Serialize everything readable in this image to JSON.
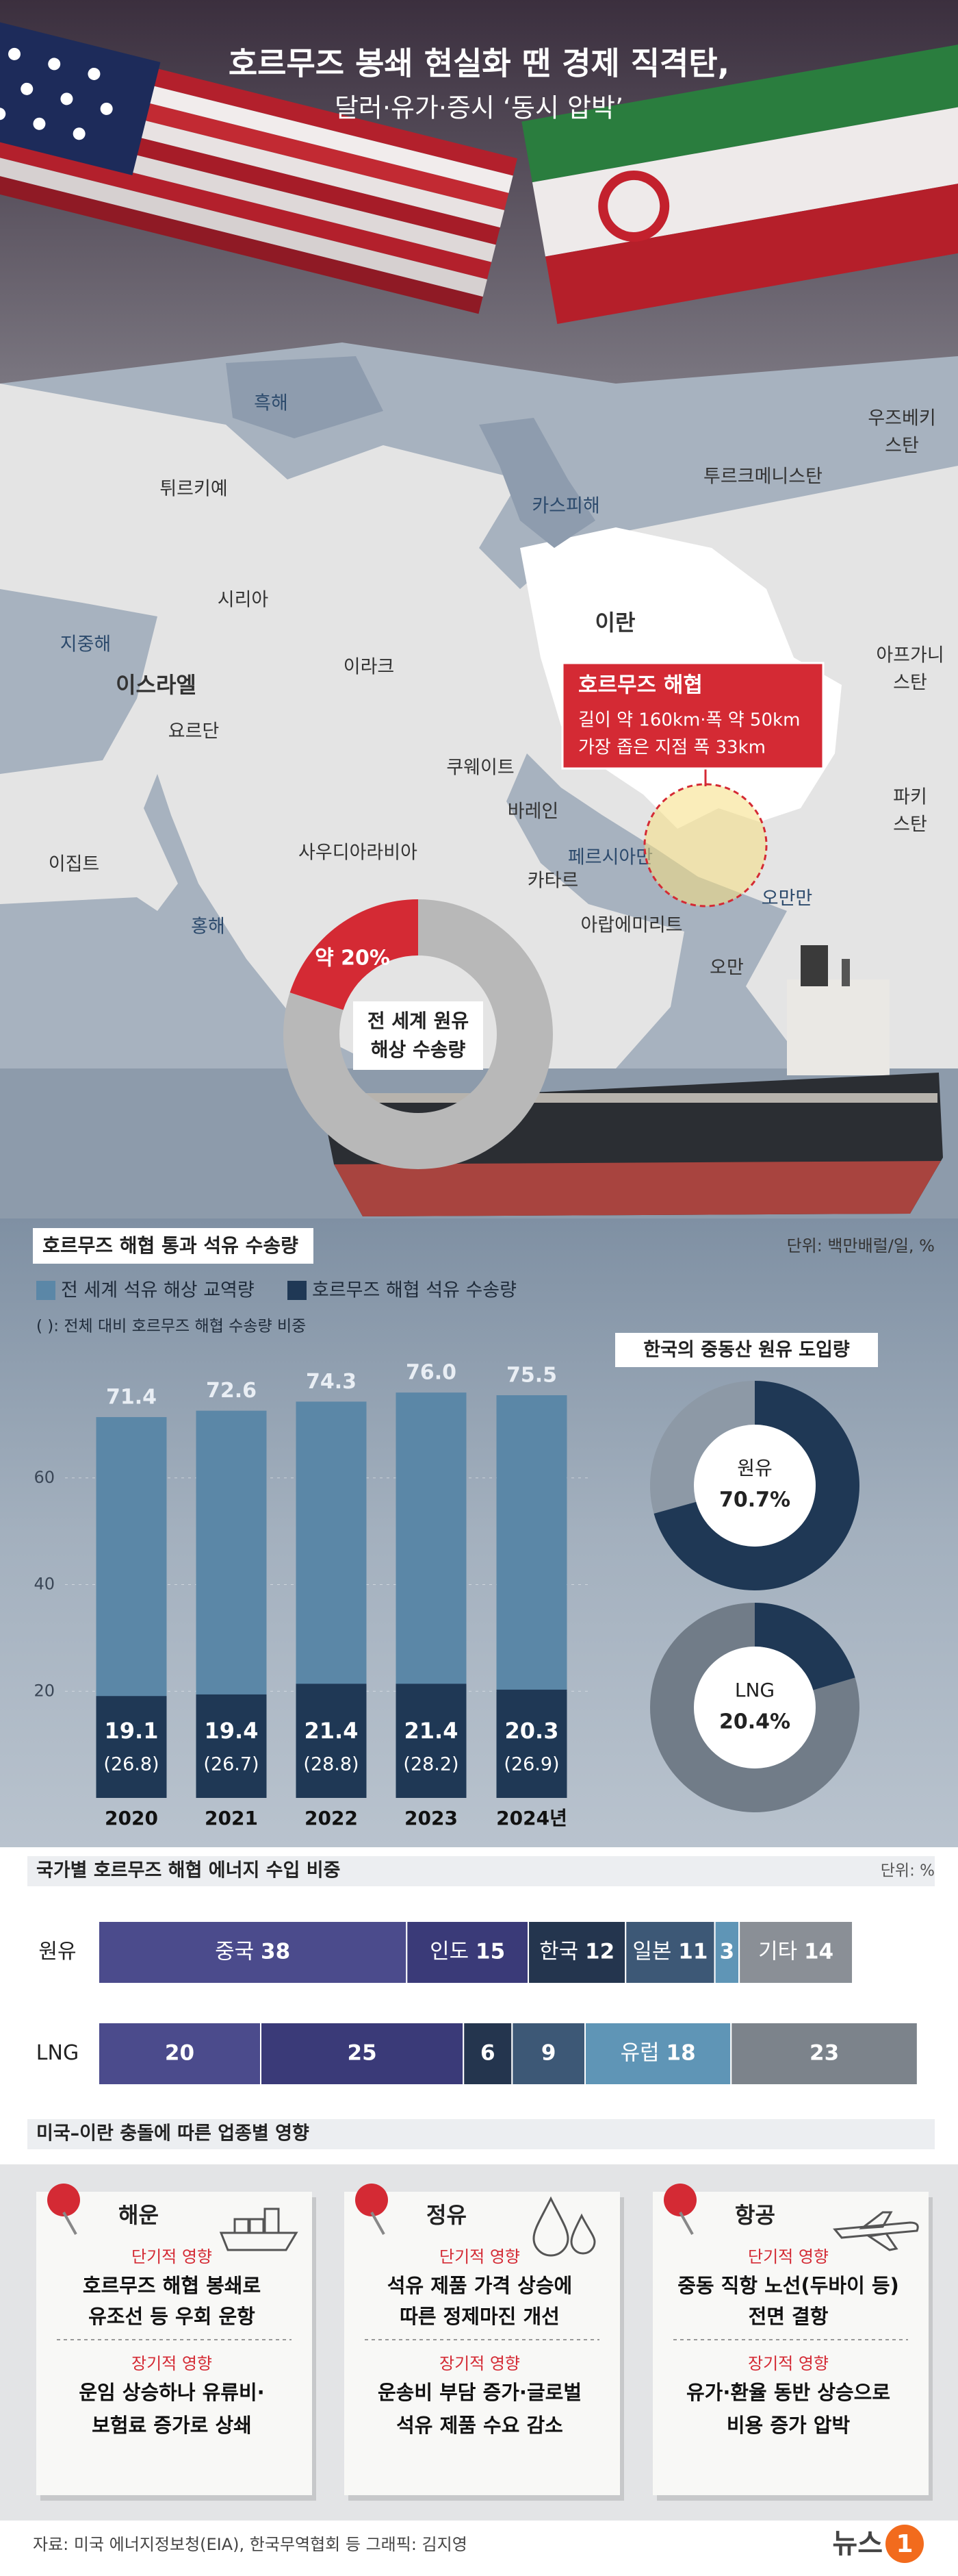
{
  "header": {
    "title": "호르무즈 봉쇄 현실화 땐 경제 직격탄,",
    "subtitle": "달러·유가·증시 ‘동시 압박’"
  },
  "map": {
    "labels": [
      {
        "lines": [
          "흑해"
        ]
      },
      {
        "lines": [
          "튀르키예"
        ]
      },
      {
        "lines": [
          "카스피해"
        ]
      },
      {
        "lines": [
          "투르크메니스탄"
        ]
      },
      {
        "lines": [
          "우즈베키",
          "스탄"
        ]
      },
      {
        "lines": [
          "시리아"
        ]
      },
      {
        "lines": [
          "이란"
        ]
      },
      {
        "lines": [
          "지중해"
        ]
      },
      {
        "lines": [
          "이스라엘"
        ]
      },
      {
        "lines": [
          "이라크"
        ]
      },
      {
        "lines": [
          "아프가니",
          "스탄"
        ]
      },
      {
        "lines": [
          "요르단"
        ]
      },
      {
        "lines": [
          "쿠웨이트"
        ]
      },
      {
        "lines": [
          "바레인"
        ]
      },
      {
        "lines": [
          "파키",
          "스탄"
        ]
      },
      {
        "lines": [
          "이집트"
        ]
      },
      {
        "lines": [
          "사우디아라비아"
        ]
      },
      {
        "lines": [
          "페르시아만"
        ]
      },
      {
        "lines": [
          "카타르"
        ]
      },
      {
        "lines": [
          "오만만"
        ]
      },
      {
        "lines": [
          "홍해"
        ]
      },
      {
        "lines": [
          "아랍에미리트"
        ]
      },
      {
        "lines": [
          "오만"
        ]
      }
    ],
    "callout": {
      "title": "호르무즈 해협",
      "lines": [
        "길이 약 160km·폭 약 50km",
        "가장 좁은 지점 폭 33km"
      ]
    }
  },
  "chart_data": [
    {
      "type": "pie",
      "title_lines": [
        "전 세계 원유",
        "해상 수송량"
      ],
      "values": [
        20
      ],
      "value_labels": [
        "약 20%"
      ],
      "color": "#d42a34"
    },
    {
      "type": "bar",
      "title": "호르무즈 해협 통과 석유 수송량",
      "unit": "단위: 백만배럴/일, %",
      "note": "( ): 전체 대비 호르무즈 해협 수송량 비중",
      "categories": [
        "2020",
        "2021",
        "2022",
        "2023",
        "2024년"
      ],
      "series": [
        {
          "name": "전 세계 석유 해상 교역량",
          "color": "#5b87a7",
          "values": [
            71.4,
            72.6,
            74.3,
            76.0,
            75.5
          ],
          "value_labels": [
            "71.4",
            "72.6",
            "74.3",
            "76.0",
            "75.5"
          ]
        },
        {
          "name": "호르무즈 해협 석유 수송량",
          "color": "#1f3855",
          "values": [
            19.1,
            19.4,
            21.4,
            21.4,
            20.3
          ],
          "share_values": [
            26.8,
            26.7,
            28.8,
            28.2,
            26.9
          ],
          "share_labels": [
            "(26.8)",
            "(26.7)",
            "(28.8)",
            "(28.2)",
            "(26.9)"
          ]
        }
      ],
      "ylim": [
        0,
        80
      ],
      "yticks": [
        20,
        40,
        60
      ],
      "grid": true
    },
    {
      "type": "pie",
      "title": "한국의 중동산 원유 도입량",
      "series": [
        {
          "name": "원유",
          "values": [
            70.7
          ],
          "value_labels": [
            "70.7%"
          ],
          "color": "#1f3855",
          "rest_color": "#8d99a6"
        },
        {
          "name": "LNG",
          "values": [
            20.4
          ],
          "value_labels": [
            "20.4%"
          ],
          "color": "#1f3855",
          "rest_color": "#717c88"
        }
      ]
    },
    {
      "type": "stacked_bar",
      "title": "국가별 호르무즈 해협 에너지 수입 비중",
      "unit": "단위: %",
      "categories": [
        "원유",
        "LNG"
      ],
      "rows": [
        {
          "segments": [
            {
              "name": "중국",
              "value": 38,
              "color": "#4b4b8c"
            },
            {
              "name": "인도",
              "value": 15,
              "color": "#3a3a78"
            },
            {
              "name": "한국",
              "value": 12,
              "color": "#24354e"
            },
            {
              "name": "일본",
              "value": 11,
              "color": "#3d5876"
            },
            {
              "value": 3,
              "color": "#5f95b6"
            },
            {
              "name": "기타",
              "value": 14,
              "color": "#8a8f96"
            }
          ]
        },
        {
          "segments": [
            {
              "value": 20,
              "color": "#4b4b8c"
            },
            {
              "value": 25,
              "color": "#3a3a78"
            },
            {
              "value": 6,
              "color": "#24354e"
            },
            {
              "value": 9,
              "color": "#3d5876"
            },
            {
              "name": "유럽",
              "value": 18,
              "color": "#5f95b6"
            },
            {
              "value": 23,
              "color": "#7c838b"
            }
          ]
        }
      ]
    }
  ],
  "impacts": {
    "title": "미국–이란 충돌에 따른 업종별 영향",
    "cards": [
      {
        "name": "해운",
        "short": {
          "label": "단기적 영향",
          "lines": [
            "호르무즈 해협 봉쇄로",
            "유조선 등 우회 운항"
          ]
        },
        "long": {
          "label": "장기적 영향",
          "lines": [
            "운임 상승하나 유류비·",
            "보험료 증가로 상쇄"
          ]
        }
      },
      {
        "name": "정유",
        "short": {
          "label": "단기적 영향",
          "lines": [
            "석유 제품 가격 상승에",
            "따른 정제마진 개선"
          ]
        },
        "long": {
          "label": "장기적 영향",
          "lines": [
            "운송비 부담 증가·글로벌",
            "석유 제품 수요 감소"
          ]
        }
      },
      {
        "name": "항공",
        "short": {
          "label": "단기적 영향",
          "lines": [
            "중동 직항 노선(두바이 등)",
            "전면 결항"
          ]
        },
        "long": {
          "label": "장기적 영향",
          "lines": [
            "유가·환율 동반 상승으로",
            "비용 증가 압박"
          ]
        }
      }
    ]
  },
  "footer": {
    "source": "자료: 미국 에너지정보청(EIA), 한국무역협회 등  그래픽: 김지영",
    "logo": [
      "뉴스",
      "1"
    ]
  }
}
